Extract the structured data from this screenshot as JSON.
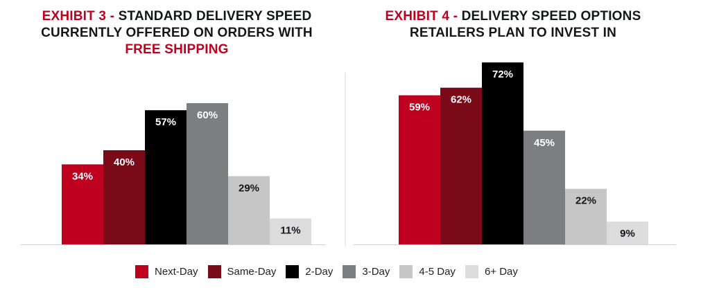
{
  "chart_data": [
    {
      "type": "bar",
      "title_prefix": "EXHIBIT 3 - ",
      "title_main": "STANDARD DELIVERY SPEED CURRENTLY OFFERED ON ORDERS WITH",
      "title_suffix": "FREE SHIPPING",
      "categories": [
        "Next-Day",
        "Same-Day",
        "2-Day",
        "3-Day",
        "4-5 Day",
        "6+ Day"
      ],
      "values": [
        34,
        40,
        57,
        60,
        29,
        11
      ],
      "labels": [
        "34%",
        "40%",
        "57%",
        "60%",
        "29%",
        "11%"
      ],
      "unit": "%"
    },
    {
      "type": "bar",
      "title_prefix": "EXHIBIT 4 - ",
      "title_main": "DELIVERY SPEED OPTIONS RETAILERS PLAN TO INVEST IN",
      "categories": [
        "Next-Day",
        "Same-Day",
        "2-Day",
        "3-Day",
        "4-5 Day",
        "6+ Day"
      ],
      "values": [
        59,
        62,
        72,
        45,
        22,
        9
      ],
      "labels": [
        "59%",
        "62%",
        "72%",
        "45%",
        "22%",
        "9%"
      ],
      "unit": "%"
    }
  ],
  "legend": [
    {
      "label": "Next-Day",
      "color": "#c0001f"
    },
    {
      "label": "Same-Day",
      "color": "#7a0a18"
    },
    {
      "label": "2-Day",
      "color": "#000000"
    },
    {
      "label": "3-Day",
      "color": "#7d7e80"
    },
    {
      "label": "4-5 Day",
      "color": "#c6c6c6"
    },
    {
      "label": "6+ Day",
      "color": "#dcdcdd"
    }
  ],
  "label_colors": [
    "#ffffff",
    "#ffffff",
    "#ffffff",
    "#ffffff",
    "#14161a",
    "#14161a"
  ]
}
